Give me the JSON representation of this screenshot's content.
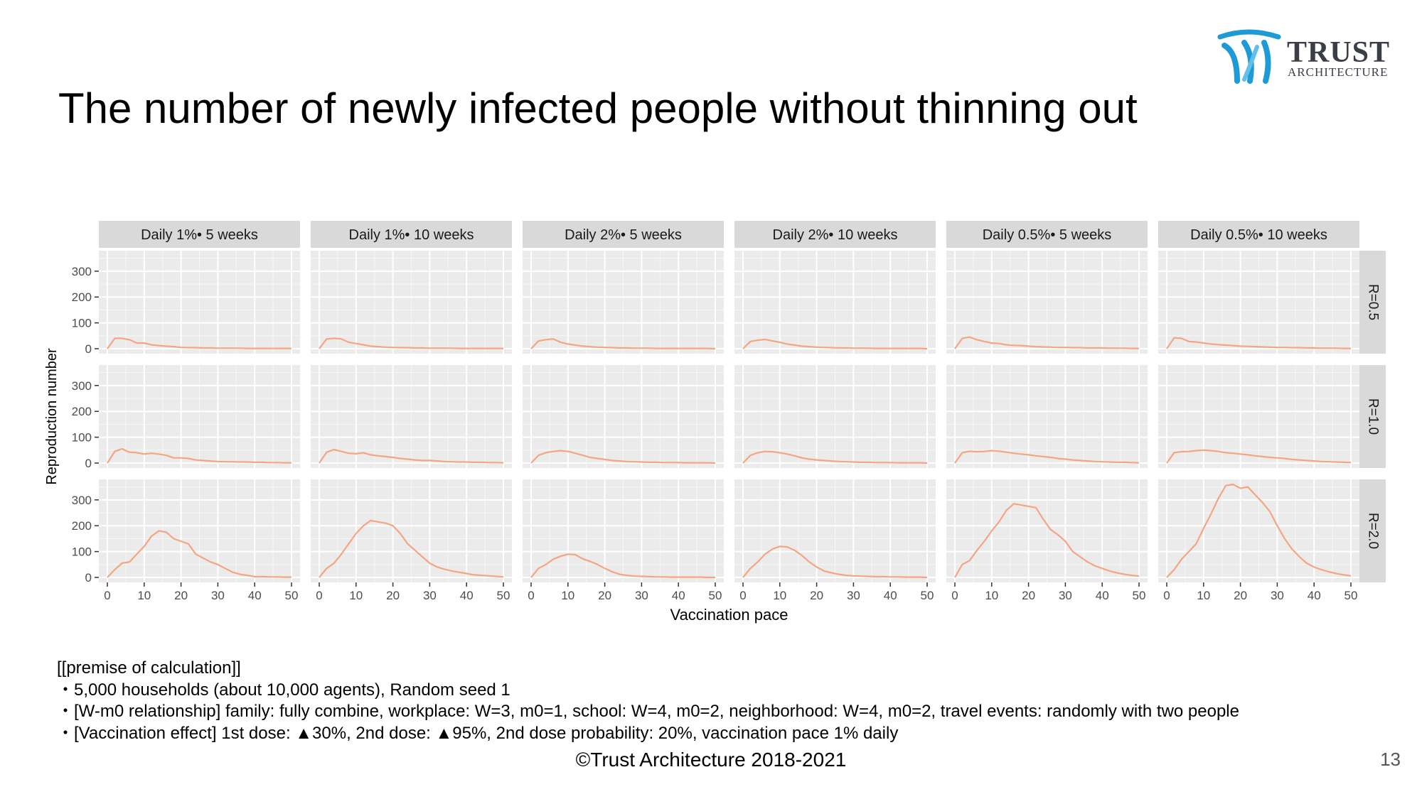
{
  "title": "The number of newly infected people without thinning out",
  "logo": {
    "main": "TRUST",
    "sub": "ARCHITECTURE",
    "icon": "trust-architecture-mark"
  },
  "colors": {
    "line": "#F4A582",
    "panel_bg": "#EBEBEB",
    "strip_bg": "#D9D9D9",
    "grid": "#FFFFFF",
    "logo_blue": "#1E9AD6"
  },
  "chart_data": {
    "type": "line",
    "xlabel": "Vaccination pace",
    "ylabel": "Reproduction number",
    "xlim": [
      0,
      50
    ],
    "ylim": [
      0,
      360
    ],
    "xticks": [
      0,
      10,
      20,
      30,
      40,
      50
    ],
    "yticks": [
      0,
      100,
      200,
      300
    ],
    "grid": true,
    "columns": [
      "Daily 1%• 5 weeks",
      "Daily 1%• 10 weeks",
      "Daily 2%• 5 weeks",
      "Daily 2%• 10 weeks",
      "Daily 0.5%• 5 weeks",
      "Daily 0.5%• 10 weeks"
    ],
    "rows": [
      "R=0.5",
      "R=1.0",
      "R=2.0"
    ],
    "x": [
      0,
      2,
      4,
      6,
      8,
      10,
      12,
      14,
      16,
      18,
      20,
      22,
      24,
      26,
      28,
      30,
      32,
      34,
      36,
      38,
      40,
      42,
      44,
      46,
      48,
      50
    ],
    "panels": [
      [
        [
          0,
          40,
          40,
          35,
          22,
          22,
          15,
          12,
          10,
          8,
          5,
          4,
          4,
          3,
          3,
          2,
          2,
          2,
          2,
          1,
          1,
          1,
          1,
          1,
          1,
          1
        ],
        [
          0,
          45,
          55,
          42,
          40,
          35,
          38,
          35,
          30,
          20,
          20,
          18,
          12,
          10,
          8,
          6,
          5,
          5,
          4,
          4,
          3,
          3,
          2,
          2,
          1,
          1
        ],
        [
          0,
          30,
          55,
          60,
          90,
          120,
          160,
          180,
          175,
          150,
          140,
          130,
          90,
          75,
          60,
          50,
          35,
          20,
          12,
          8,
          3,
          3,
          2,
          2,
          1,
          1
        ]
      ],
      [
        [
          0,
          38,
          40,
          38,
          25,
          20,
          15,
          10,
          8,
          6,
          5,
          4,
          4,
          3,
          3,
          2,
          2,
          2,
          2,
          1,
          1,
          1,
          1,
          1,
          1,
          1
        ],
        [
          0,
          42,
          52,
          45,
          38,
          36,
          40,
          32,
          28,
          25,
          22,
          18,
          15,
          12,
          10,
          10,
          8,
          6,
          5,
          4,
          4,
          3,
          3,
          2,
          2,
          1
        ],
        [
          0,
          35,
          55,
          90,
          130,
          170,
          200,
          220,
          215,
          210,
          200,
          170,
          130,
          105,
          80,
          55,
          40,
          32,
          25,
          20,
          15,
          10,
          8,
          6,
          4,
          2
        ]
      ],
      [
        [
          0,
          30,
          35,
          38,
          25,
          18,
          14,
          10,
          8,
          6,
          5,
          4,
          3,
          3,
          2,
          2,
          2,
          1,
          1,
          1,
          1,
          1,
          1,
          1,
          1,
          0
        ],
        [
          0,
          30,
          40,
          45,
          48,
          45,
          38,
          30,
          22,
          18,
          14,
          10,
          8,
          6,
          5,
          4,
          3,
          3,
          2,
          2,
          2,
          1,
          1,
          1,
          1,
          0
        ],
        [
          0,
          35,
          50,
          70,
          82,
          90,
          88,
          72,
          62,
          50,
          35,
          22,
          12,
          8,
          5,
          4,
          3,
          2,
          2,
          1,
          1,
          1,
          1,
          1,
          0,
          0
        ]
      ],
      [
        [
          0,
          28,
          33,
          36,
          30,
          25,
          18,
          14,
          10,
          8,
          6,
          5,
          4,
          3,
          3,
          2,
          2,
          2,
          1,
          1,
          1,
          1,
          1,
          1,
          1,
          0
        ],
        [
          0,
          30,
          40,
          45,
          44,
          40,
          35,
          28,
          20,
          15,
          12,
          10,
          8,
          6,
          5,
          4,
          3,
          3,
          2,
          2,
          2,
          1,
          1,
          1,
          1,
          0
        ],
        [
          0,
          35,
          60,
          90,
          110,
          120,
          118,
          105,
          85,
          60,
          40,
          25,
          18,
          12,
          8,
          6,
          5,
          4,
          3,
          3,
          2,
          2,
          1,
          1,
          1,
          0
        ]
      ],
      [
        [
          0,
          40,
          45,
          35,
          28,
          22,
          20,
          15,
          13,
          12,
          10,
          8,
          7,
          6,
          5,
          5,
          4,
          4,
          3,
          3,
          3,
          2,
          2,
          2,
          1,
          1
        ],
        [
          0,
          40,
          46,
          44,
          45,
          48,
          46,
          42,
          38,
          35,
          32,
          28,
          25,
          22,
          18,
          15,
          12,
          10,
          8,
          6,
          5,
          4,
          3,
          3,
          2,
          1
        ],
        [
          0,
          50,
          65,
          105,
          140,
          180,
          215,
          260,
          285,
          280,
          275,
          270,
          225,
          185,
          165,
          140,
          100,
          80,
          60,
          45,
          35,
          25,
          18,
          12,
          8,
          5
        ]
      ],
      [
        [
          0,
          42,
          40,
          28,
          26,
          22,
          18,
          16,
          14,
          12,
          10,
          9,
          8,
          7,
          6,
          5,
          5,
          4,
          4,
          3,
          3,
          2,
          2,
          2,
          1,
          1
        ],
        [
          0,
          40,
          44,
          45,
          48,
          50,
          48,
          45,
          40,
          38,
          35,
          32,
          28,
          25,
          22,
          20,
          18,
          14,
          12,
          10,
          8,
          6,
          5,
          4,
          3,
          2
        ],
        [
          0,
          30,
          70,
          100,
          130,
          190,
          245,
          305,
          355,
          360,
          345,
          350,
          320,
          290,
          255,
          200,
          150,
          110,
          80,
          55,
          40,
          30,
          22,
          15,
          10,
          6
        ]
      ]
    ]
  },
  "premise": {
    "heading": "[[premise of calculation]]",
    "lines": [
      "・5,000 households (about 10,000 agents), Random seed 1",
      "・[W-m0 relationship] family: fully combine, workplace: W=3, m0=1, school: W=4, m0=2, neighborhood: W=4, m0=2, travel events: randomly with two people",
      "・[Vaccination effect] 1st dose: ▲30%, 2nd dose: ▲95%, 2nd dose probability: 20%, vaccination pace 1% daily"
    ]
  },
  "footer": "©Trust Architecture 2018-2021",
  "page_number": "13"
}
